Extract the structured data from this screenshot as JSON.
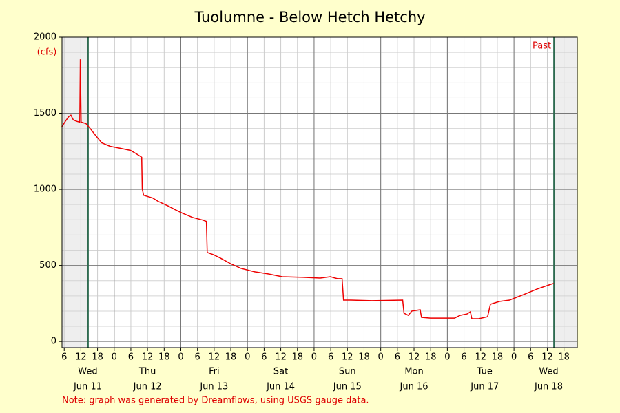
{
  "chart_data": {
    "type": "line",
    "title": "Tuolumne - Below Hetch Hetchy",
    "y_unit": "(cfs)",
    "note": "Note: graph was generated by Dreamflows, using USGS gauge data.",
    "marker_label": "Past",
    "markers": [
      14.6,
      182.4
    ],
    "xlim": [
      5.2,
      190.8
    ],
    "ylim": [
      -40,
      2000
    ],
    "yticks": [
      0,
      500,
      1000,
      1500,
      2000
    ],
    "yminor_ticks": [
      100,
      200,
      300,
      400,
      600,
      700,
      800,
      900,
      1100,
      1200,
      1300,
      1400,
      1600,
      1700,
      1800,
      1900
    ],
    "xmajor_grid": [
      24,
      48,
      72,
      96,
      120,
      144,
      168
    ],
    "xticks": [
      {
        "value": 6,
        "label": "6"
      },
      {
        "value": 12,
        "label": "12"
      },
      {
        "value": 18,
        "label": "18"
      },
      {
        "value": 24,
        "label": "0"
      },
      {
        "value": 30,
        "label": "6"
      },
      {
        "value": 36,
        "label": "12"
      },
      {
        "value": 42,
        "label": "18"
      },
      {
        "value": 48,
        "label": "0"
      },
      {
        "value": 54,
        "label": "6"
      },
      {
        "value": 60,
        "label": "12"
      },
      {
        "value": 66,
        "label": "18"
      },
      {
        "value": 72,
        "label": "0"
      },
      {
        "value": 78,
        "label": "6"
      },
      {
        "value": 84,
        "label": "12"
      },
      {
        "value": 90,
        "label": "18"
      },
      {
        "value": 96,
        "label": "0"
      },
      {
        "value": 102,
        "label": "6"
      },
      {
        "value": 108,
        "label": "12"
      },
      {
        "value": 114,
        "label": "18"
      },
      {
        "value": 120,
        "label": "0"
      },
      {
        "value": 126,
        "label": "6"
      },
      {
        "value": 132,
        "label": "12"
      },
      {
        "value": 138,
        "label": "18"
      },
      {
        "value": 144,
        "label": "0"
      },
      {
        "value": 150,
        "label": "6"
      },
      {
        "value": 156,
        "label": "12"
      },
      {
        "value": 162,
        "label": "18"
      },
      {
        "value": 168,
        "label": "0"
      },
      {
        "value": 174,
        "label": "6"
      },
      {
        "value": 180,
        "label": "12"
      },
      {
        "value": 186,
        "label": "18"
      }
    ],
    "days": [
      {
        "value": 14.5,
        "weekday": "Wed",
        "date": "Jun 11"
      },
      {
        "value": 36,
        "weekday": "Thu",
        "date": "Jun 12"
      },
      {
        "value": 60,
        "weekday": "Fri",
        "date": "Jun 13"
      },
      {
        "value": 84,
        "weekday": "Sat",
        "date": "Jun 14"
      },
      {
        "value": 108,
        "weekday": "Sun",
        "date": "Jun 15"
      },
      {
        "value": 132,
        "weekday": "Mon",
        "date": "Jun 16"
      },
      {
        "value": 157.5,
        "weekday": "Tue",
        "date": "Jun 17"
      },
      {
        "value": 180.5,
        "weekday": "Wed",
        "date": "Jun 18"
      }
    ],
    "series": [
      {
        "color": "#ee0000",
        "x": [
          5.1,
          6.4,
          7.6,
          8.4,
          9.3,
          10.6,
          11.6,
          11.8,
          12.1,
          13.8,
          15.1,
          17.0,
          19.5,
          22.5,
          26.2,
          29.9,
          32.4,
          33.9,
          34.1,
          34.6,
          37.9,
          39.8,
          43.6,
          46.0,
          48.5,
          52.2,
          55.9,
          57.2,
          57.5,
          59.7,
          62.2,
          65.9,
          69.6,
          74.6,
          79.6,
          84.5,
          92.0,
          98.2,
          101.9,
          104.4,
          106.1,
          106.6,
          109.3,
          116.8,
          127.9,
          128.4,
          129.9,
          131.2,
          134.2,
          134.7,
          137.9,
          146.6,
          148.6,
          151.1,
          152.3,
          152.8,
          155.3,
          158.5,
          159.5,
          162.7,
          166.4,
          171.4,
          176.3,
          181.3,
          182.3
        ],
        "values": [
          1410,
          1447,
          1478,
          1488,
          1456,
          1447,
          1442,
          1855,
          1442,
          1433,
          1406,
          1361,
          1306,
          1283,
          1270,
          1256,
          1229,
          1211,
          1002,
          961,
          943,
          921,
          889,
          866,
          844,
          816,
          798,
          789,
          585,
          571,
          549,
          512,
          481,
          458,
          444,
          426,
          422,
          417,
          426,
          413,
          413,
          272,
          272,
          268,
          272,
          186,
          172,
          200,
          209,
          159,
          154,
          154,
          172,
          181,
          195,
          150,
          150,
          163,
          245,
          263,
          272,
          308,
          345,
          376,
          381
        ]
      }
    ]
  }
}
